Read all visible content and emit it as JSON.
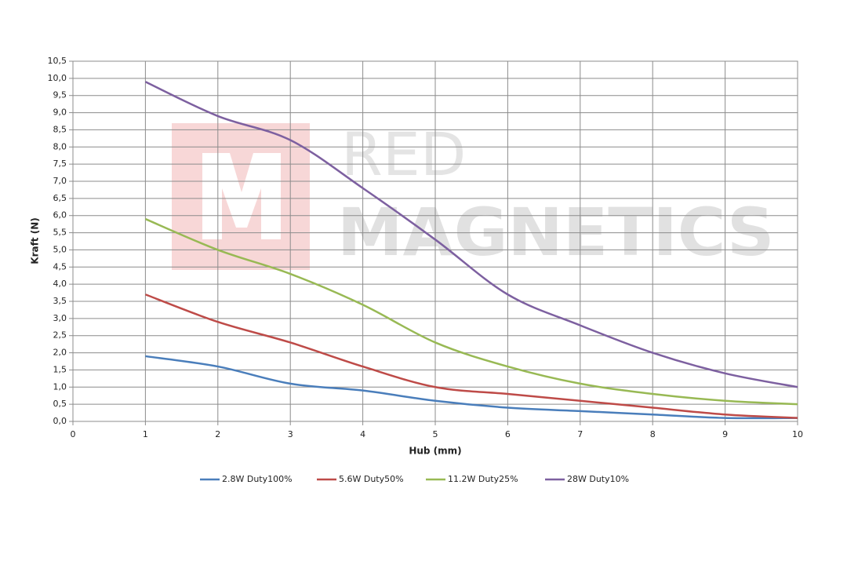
{
  "chart_data": {
    "type": "line",
    "watermark": {
      "line1": "RED",
      "line2": "MAGNETICS"
    },
    "x_label": "Hub (mm)",
    "y_label": "Kraft (N)",
    "x": [
      1,
      2,
      3,
      4,
      5,
      6,
      7,
      8,
      9,
      10
    ],
    "series": [
      {
        "name": "2.8W Duty100%",
        "color": "#4a7ebb",
        "values": [
          1.9,
          1.6,
          1.1,
          0.9,
          0.6,
          0.4,
          0.3,
          0.2,
          0.1,
          0.1
        ]
      },
      {
        "name": "5.6W Duty50%",
        "color": "#be4b48",
        "values": [
          3.7,
          2.9,
          2.3,
          1.6,
          1.0,
          0.8,
          0.6,
          0.4,
          0.2,
          0.1
        ]
      },
      {
        "name": "11.2W Duty25%",
        "color": "#98b954",
        "values": [
          5.9,
          5.0,
          4.3,
          3.4,
          2.3,
          1.6,
          1.1,
          0.8,
          0.6,
          0.5
        ]
      },
      {
        "name": "28W Duty10%",
        "color": "#7d60a0",
        "values": [
          9.9,
          8.9,
          8.2,
          6.8,
          5.3,
          3.7,
          2.8,
          2.0,
          1.4,
          1.0
        ]
      }
    ],
    "xlim": [
      0,
      10
    ],
    "xticks": [
      0,
      1,
      2,
      3,
      4,
      5,
      6,
      7,
      8,
      9,
      10
    ],
    "ylim": [
      0,
      10.5
    ],
    "yticks": [
      {
        "value": 0,
        "label": "0,0"
      },
      {
        "value": 0.5,
        "label": "0,5"
      },
      {
        "value": 1,
        "label": "1,0"
      },
      {
        "value": 1.5,
        "label": "1,5"
      },
      {
        "value": 2,
        "label": "2,0"
      },
      {
        "value": 2.5,
        "label": "2,5"
      },
      {
        "value": 3,
        "label": "3,0"
      },
      {
        "value": 3.5,
        "label": "3,5"
      },
      {
        "value": 4,
        "label": "4,0"
      },
      {
        "value": 4.5,
        "label": "4,5"
      },
      {
        "value": 5,
        "label": "5,0"
      },
      {
        "value": 5.5,
        "label": "5,5"
      },
      {
        "value": 6,
        "label": "6,0"
      },
      {
        "value": 6.5,
        "label": "6,5"
      },
      {
        "value": 7,
        "label": "7,0"
      },
      {
        "value": 7.5,
        "label": "7,5"
      },
      {
        "value": 8,
        "label": "8,0"
      },
      {
        "value": 8.5,
        "label": "8,5"
      },
      {
        "value": 9,
        "label": "9,0"
      },
      {
        "value": 9.5,
        "label": "9,5"
      },
      {
        "value": 10,
        "label": "10,0"
      },
      {
        "value": 10.5,
        "label": "10,5"
      }
    ],
    "grid": true,
    "smooth": true,
    "legend": "bottom"
  }
}
